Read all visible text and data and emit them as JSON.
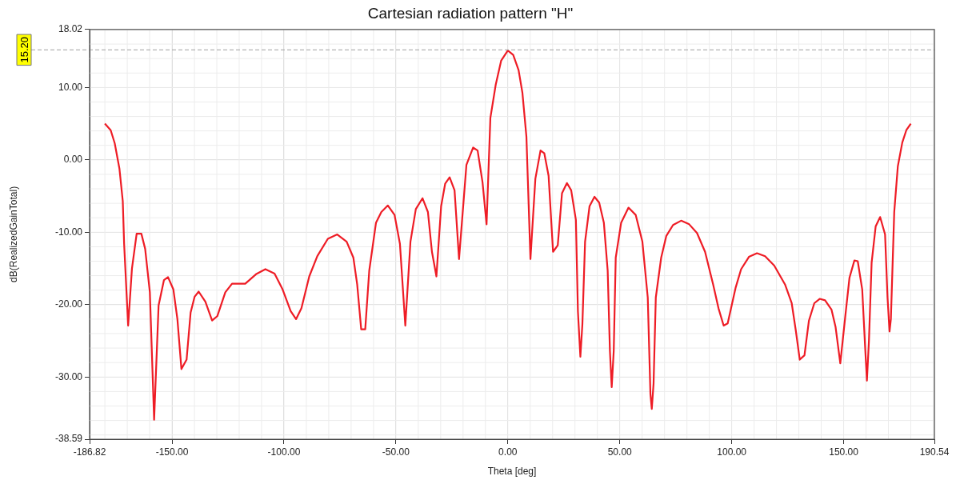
{
  "chart_data": {
    "type": "line",
    "title": "Cartesian radiation pattern \"H\"",
    "xlabel": "Theta [deg]",
    "ylabel": "dB(RealizedGainTotal)",
    "xlim": [
      -186.82,
      190.54
    ],
    "xticks": [
      {
        "value": -186.82,
        "label": "-186.82"
      },
      {
        "value": -150,
        "label": "-150.00"
      },
      {
        "value": -100,
        "label": "-100.00"
      },
      {
        "value": -50,
        "label": "-50.00"
      },
      {
        "value": 0,
        "label": "0.00"
      },
      {
        "value": 50,
        "label": "50.00"
      },
      {
        "value": 100,
        "label": "100.00"
      },
      {
        "value": 150,
        "label": "150.00"
      },
      {
        "value": 190.54,
        "label": "190.54"
      }
    ],
    "ylim": [
      -38.59,
      18.02
    ],
    "yticks": [
      {
        "value": -38.59,
        "label": "-38.59"
      },
      {
        "value": -30,
        "label": "-30.00"
      },
      {
        "value": -20,
        "label": "-20.00"
      },
      {
        "value": -10,
        "label": "-10.00"
      },
      {
        "value": 0,
        "label": "0.00"
      },
      {
        "value": 10,
        "label": "10.00"
      },
      {
        "value": 18.02,
        "label": "18.02"
      }
    ],
    "grid": true,
    "ref_lines": [
      {
        "axis": "y",
        "value": 15.2,
        "label": "15.20",
        "color": "#a0a0a0",
        "line_style": "dashed"
      }
    ],
    "series": [
      {
        "color": "#ee1c25",
        "x": [
          -180,
          -177.4,
          -175.6,
          -173.5,
          -172,
          -171.4,
          -169.6,
          -167.9,
          -165.8,
          -163.7,
          -162,
          -159.9,
          -158,
          -156,
          -153.6,
          -151.8,
          -149.4,
          -147.6,
          -145.8,
          -143.5,
          -141.7,
          -139.9,
          -138.1,
          -135.1,
          -132.1,
          -129.8,
          -126.2,
          -123.2,
          -117.3,
          -112.5,
          -108.3,
          -104.2,
          -100.6,
          -97,
          -94.6,
          -92.2,
          -88.7,
          -85.1,
          -80.4,
          -76.2,
          -72,
          -69,
          -67.3,
          -65.5,
          -63.7,
          -61.9,
          -58.9,
          -56.5,
          -53.6,
          -50.6,
          -48.2,
          -45.8,
          -43.5,
          -41.1,
          -38.1,
          -35.7,
          -33.9,
          -31.9,
          -29.8,
          -28,
          -26,
          -23.8,
          -21.8,
          -18.5,
          -15.5,
          -13.5,
          -11.3,
          -9.5,
          -7.8,
          -5.4,
          -3,
          0,
          2.4,
          4.8,
          6.5,
          8.3,
          10.1,
          12.3,
          14.6,
          16.3,
          18.2,
          20.2,
          22.3,
          24.2,
          26.4,
          28.3,
          30.4,
          31.3,
          32.4,
          33.3,
          34.5,
          36.5,
          38.7,
          40.8,
          42.9,
          44.6,
          45.6,
          46.4,
          47.3,
          48.2,
          50.6,
          53.9,
          57.1,
          60.1,
          62.5,
          63.7,
          64.3,
          65.1,
          66.1,
          68.5,
          70.8,
          73.8,
          77.4,
          81,
          84.5,
          88.1,
          91.7,
          94.1,
          96.4,
          98.2,
          101.8,
          104.2,
          107.7,
          111.3,
          114.9,
          119,
          123.8,
          126.8,
          128.6,
          130.4,
          132.5,
          134.5,
          136.9,
          139.3,
          141.7,
          144.6,
          146.4,
          148.5,
          150.6,
          152.6,
          154.8,
          156.3,
          158.3,
          159.5,
          160.4,
          161.3,
          162.5,
          164.3,
          166.3,
          168.5,
          169.6,
          170.5,
          171.1,
          172.6,
          174.2,
          176.2,
          178,
          180
        ],
        "values": [
          5.0,
          4.1,
          2.3,
          -1.2,
          -5.7,
          -11.6,
          -22.9,
          -15,
          -10.2,
          -10.2,
          -12.3,
          -18.3,
          -35.9,
          -20.1,
          -16.6,
          -16.2,
          -17.9,
          -22,
          -28.9,
          -27.6,
          -21.1,
          -18.9,
          -18.2,
          -19.6,
          -22.2,
          -21.6,
          -18.3,
          -17.1,
          -17.1,
          -15.8,
          -15.1,
          -15.7,
          -17.9,
          -20.9,
          -22,
          -20.5,
          -16.1,
          -13.3,
          -10.9,
          -10.3,
          -11.3,
          -13.5,
          -17.2,
          -23.4,
          -23.4,
          -15.3,
          -8.7,
          -7.2,
          -6.3,
          -7.6,
          -11.6,
          -22.9,
          -11.3,
          -6.8,
          -5.3,
          -7.2,
          -12.7,
          -16.1,
          -6.4,
          -3.3,
          -2.4,
          -4.2,
          -13.7,
          -0.7,
          1.7,
          1.3,
          -3.1,
          -8.9,
          5.8,
          10.4,
          13.7,
          15.1,
          14.5,
          12.4,
          9.3,
          3.2,
          -13.7,
          -2.6,
          1.3,
          0.9,
          -2.2,
          -12.7,
          -11.8,
          -4.6,
          -3.2,
          -4.2,
          -8.3,
          -20.9,
          -27.2,
          -22.7,
          -11.3,
          -6.4,
          -5.1,
          -5.9,
          -8.7,
          -15.3,
          -26.4,
          -31.4,
          -26.4,
          -13.5,
          -8.7,
          -6.6,
          -7.6,
          -11.3,
          -19,
          -32.4,
          -34.4,
          -30.9,
          -19,
          -13.5,
          -10.5,
          -9,
          -8.4,
          -8.9,
          -10.1,
          -12.7,
          -17.2,
          -20.5,
          -22.9,
          -22.6,
          -17.6,
          -15.1,
          -13.4,
          -12.9,
          -13.3,
          -14.6,
          -17.2,
          -19.8,
          -23.5,
          -27.6,
          -27,
          -22.2,
          -19.8,
          -19.2,
          -19.4,
          -20.7,
          -23.1,
          -28.1,
          -22,
          -16.3,
          -13.9,
          -14,
          -17.9,
          -25.3,
          -30.5,
          -25,
          -14.2,
          -9.2,
          -7.9,
          -10.3,
          -19,
          -23.7,
          -22,
          -7.2,
          -0.9,
          2.4,
          4.1,
          5.0
        ]
      }
    ]
  }
}
